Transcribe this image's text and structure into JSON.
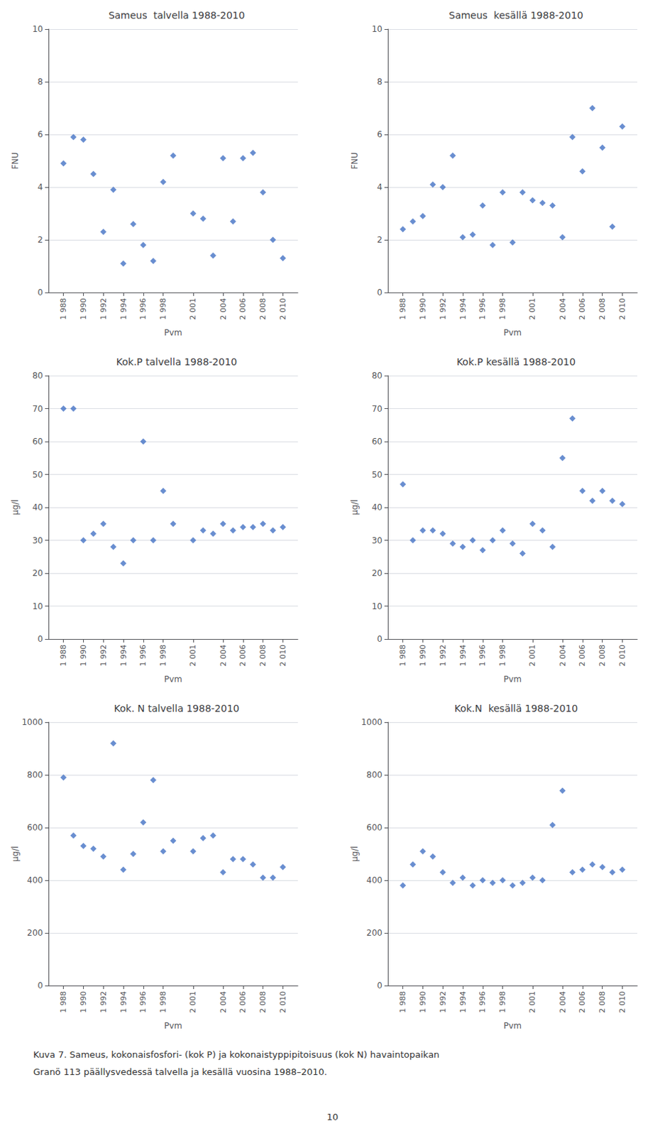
{
  "chart_data": [
    {
      "type": "scatter",
      "title": "Sameus  talvella 1988-2010",
      "xlabel": "Pvm",
      "ylabel": "FNU",
      "x": [
        1988,
        1989,
        1990,
        1991,
        1992,
        1993,
        1994,
        1995,
        1996,
        1997,
        1998,
        1999,
        2001,
        2002,
        2003,
        2004,
        2005,
        2006,
        2007,
        2008,
        2009,
        2010
      ],
      "values": [
        4.9,
        5.9,
        5.8,
        4.5,
        2.3,
        3.9,
        1.1,
        2.6,
        1.8,
        1.2,
        4.2,
        5.2,
        3.0,
        2.8,
        1.4,
        5.1,
        2.7,
        5.1,
        5.3,
        3.8,
        2.0,
        1.3
      ],
      "color": "#4472C4",
      "marker": "diamond",
      "xlim": [
        1986.5,
        2011.5
      ],
      "xticks": [
        {
          "value": 1988,
          "label": "1 988"
        },
        {
          "value": 1990,
          "label": "1 990"
        },
        {
          "value": 1992,
          "label": "1 992"
        },
        {
          "value": 1994,
          "label": "1 994"
        },
        {
          "value": 1996,
          "label": "1 996"
        },
        {
          "value": 1998,
          "label": "1 998"
        },
        {
          "value": 2001,
          "label": "2 001"
        },
        {
          "value": 2004,
          "label": "2 004"
        },
        {
          "value": 2006,
          "label": "2 006"
        },
        {
          "value": 2008,
          "label": "2 008"
        },
        {
          "value": 2010,
          "label": "2 010"
        }
      ],
      "ylim": [
        0,
        10
      ],
      "yticks": [
        0,
        2,
        4,
        6,
        8,
        10
      ],
      "grid": "y"
    },
    {
      "type": "scatter",
      "title": "Sameus  kesällä 1988-2010",
      "xlabel": "Pvm",
      "ylabel": "FNU",
      "x": [
        1988,
        1989,
        1990,
        1991,
        1992,
        1993,
        1994,
        1995,
        1996,
        1997,
        1998,
        1999,
        2000,
        2001,
        2002,
        2003,
        2004,
        2005,
        2006,
        2007,
        2008,
        2009,
        2010
      ],
      "values": [
        2.4,
        2.7,
        2.9,
        4.1,
        4.0,
        5.2,
        2.1,
        2.2,
        3.3,
        1.8,
        3.8,
        1.9,
        3.8,
        3.5,
        3.4,
        3.3,
        2.1,
        5.9,
        4.6,
        7.0,
        5.5,
        2.5,
        6.3
      ],
      "color": "#4472C4",
      "marker": "diamond",
      "xlim": [
        1986.5,
        2011.5
      ],
      "xticks": [
        {
          "value": 1988,
          "label": "1 988"
        },
        {
          "value": 1990,
          "label": "1 990"
        },
        {
          "value": 1992,
          "label": "1 992"
        },
        {
          "value": 1994,
          "label": "1 994"
        },
        {
          "value": 1996,
          "label": "1 996"
        },
        {
          "value": 1998,
          "label": "1 998"
        },
        {
          "value": 2001,
          "label": "2 001"
        },
        {
          "value": 2004,
          "label": "2 004"
        },
        {
          "value": 2006,
          "label": "2 006"
        },
        {
          "value": 2008,
          "label": "2 008"
        },
        {
          "value": 2010,
          "label": "2 010"
        }
      ],
      "ylim": [
        0,
        10
      ],
      "yticks": [
        0,
        2,
        4,
        6,
        8,
        10
      ],
      "grid": "y"
    },
    {
      "type": "scatter",
      "title": "Kok.P talvella 1988-2010",
      "xlabel": "Pvm",
      "ylabel": "µg/l",
      "x": [
        1988,
        1989,
        1990,
        1991,
        1992,
        1993,
        1994,
        1995,
        1996,
        1997,
        1998,
        1999,
        2001,
        2002,
        2003,
        2004,
        2005,
        2006,
        2007,
        2008,
        2009,
        2010
      ],
      "values": [
        70,
        70,
        30,
        32,
        35,
        28,
        23,
        30,
        60,
        30,
        45,
        35,
        30,
        33,
        32,
        35,
        33,
        34,
        34,
        35,
        33,
        34
      ],
      "color": "#4472C4",
      "marker": "diamond",
      "xlim": [
        1986.5,
        2011.5
      ],
      "xticks": [
        {
          "value": 1988,
          "label": "1 988"
        },
        {
          "value": 1990,
          "label": "1 990"
        },
        {
          "value": 1992,
          "label": "1 992"
        },
        {
          "value": 1994,
          "label": "1 994"
        },
        {
          "value": 1996,
          "label": "1 996"
        },
        {
          "value": 1998,
          "label": "1 998"
        },
        {
          "value": 2001,
          "label": "2 001"
        },
        {
          "value": 2004,
          "label": "2 004"
        },
        {
          "value": 2006,
          "label": "2 006"
        },
        {
          "value": 2008,
          "label": "2 008"
        },
        {
          "value": 2010,
          "label": "2 010"
        }
      ],
      "ylim": [
        0,
        80
      ],
      "yticks": [
        0,
        10,
        20,
        30,
        40,
        50,
        60,
        70,
        80
      ],
      "grid": "y"
    },
    {
      "type": "scatter",
      "title": "Kok.P kesällä 1988-2010",
      "xlabel": "Pvm",
      "ylabel": "µg/l",
      "x": [
        1988,
        1989,
        1990,
        1991,
        1992,
        1993,
        1994,
        1995,
        1996,
        1997,
        1998,
        1999,
        2000,
        2001,
        2002,
        2003,
        2004,
        2005,
        2006,
        2007,
        2008,
        2009,
        2010
      ],
      "values": [
        47,
        30,
        33,
        33,
        32,
        29,
        28,
        30,
        27,
        30,
        33,
        29,
        26,
        35,
        33,
        28,
        55,
        67,
        45,
        42,
        45,
        42,
        41
      ],
      "color": "#4472C4",
      "marker": "diamond",
      "xlim": [
        1986.5,
        2011.5
      ],
      "xticks": [
        {
          "value": 1988,
          "label": "1 988"
        },
        {
          "value": 1990,
          "label": "1 990"
        },
        {
          "value": 1992,
          "label": "1 992"
        },
        {
          "value": 1994,
          "label": "1 994"
        },
        {
          "value": 1996,
          "label": "1 996"
        },
        {
          "value": 1998,
          "label": "1 998"
        },
        {
          "value": 2001,
          "label": "2 001"
        },
        {
          "value": 2004,
          "label": "2 004"
        },
        {
          "value": 2006,
          "label": "2 006"
        },
        {
          "value": 2008,
          "label": "2 008"
        },
        {
          "value": 2010,
          "label": "2 010"
        }
      ],
      "ylim": [
        0,
        80
      ],
      "yticks": [
        0,
        10,
        20,
        30,
        40,
        50,
        60,
        70,
        80
      ],
      "grid": "y"
    },
    {
      "type": "scatter",
      "title": "Kok. N talvella 1988-2010",
      "xlabel": "Pvm",
      "ylabel": "µg/l",
      "x": [
        1988,
        1989,
        1990,
        1991,
        1992,
        1993,
        1994,
        1995,
        1996,
        1997,
        1998,
        1999,
        2001,
        2002,
        2003,
        2004,
        2005,
        2006,
        2007,
        2008,
        2009,
        2010
      ],
      "values": [
        790,
        570,
        530,
        520,
        490,
        920,
        440,
        500,
        620,
        780,
        510,
        550,
        510,
        560,
        570,
        430,
        480,
        480,
        460,
        410,
        410,
        450
      ],
      "color": "#4472C4",
      "marker": "diamond",
      "xlim": [
        1986.5,
        2011.5
      ],
      "xticks": [
        {
          "value": 1988,
          "label": "1 988"
        },
        {
          "value": 1990,
          "label": "1 990"
        },
        {
          "value": 1992,
          "label": "1 992"
        },
        {
          "value": 1994,
          "label": "1 994"
        },
        {
          "value": 1996,
          "label": "1 996"
        },
        {
          "value": 1998,
          "label": "1 998"
        },
        {
          "value": 2001,
          "label": "2 001"
        },
        {
          "value": 2004,
          "label": "2 004"
        },
        {
          "value": 2006,
          "label": "2 006"
        },
        {
          "value": 2008,
          "label": "2 008"
        },
        {
          "value": 2010,
          "label": "2 010"
        }
      ],
      "ylim": [
        0,
        1000
      ],
      "yticks": [
        0,
        200,
        400,
        600,
        800,
        1000
      ],
      "grid": "y"
    },
    {
      "type": "scatter",
      "title": "Kok.N  kesällä 1988-2010",
      "xlabel": "Pvm",
      "ylabel": "µg/l",
      "x": [
        1988,
        1989,
        1990,
        1991,
        1992,
        1993,
        1994,
        1995,
        1996,
        1997,
        1998,
        1999,
        2000,
        2001,
        2002,
        2003,
        2004,
        2005,
        2006,
        2007,
        2008,
        2009,
        2010
      ],
      "values": [
        380,
        460,
        510,
        490,
        430,
        390,
        410,
        380,
        400,
        390,
        400,
        380,
        390,
        410,
        400,
        610,
        740,
        430,
        440,
        460,
        450,
        430,
        440
      ],
      "color": "#4472C4",
      "marker": "diamond",
      "xlim": [
        1986.5,
        2011.5
      ],
      "xticks": [
        {
          "value": 1988,
          "label": "1 988"
        },
        {
          "value": 1990,
          "label": "1 990"
        },
        {
          "value": 1992,
          "label": "1 992"
        },
        {
          "value": 1994,
          "label": "1 994"
        },
        {
          "value": 1996,
          "label": "1 996"
        },
        {
          "value": 1998,
          "label": "1 998"
        },
        {
          "value": 2001,
          "label": "2 001"
        },
        {
          "value": 2004,
          "label": "2 004"
        },
        {
          "value": 2006,
          "label": "2 006"
        },
        {
          "value": 2008,
          "label": "2 008"
        },
        {
          "value": 2010,
          "label": "2 010"
        }
      ],
      "ylim": [
        0,
        1000
      ],
      "yticks": [
        0,
        200,
        400,
        600,
        800,
        1000
      ],
      "grid": "y"
    }
  ],
  "annotations": [
    "Kuva 7. Sameus, kokonaisfosfori- (kok P) ja kokonaistyppipitoisuus (kok N) havaintopaikan",
    "Granö 113 päällysvedessä talvella ja kesällä vuosina 1988–2010.",
    "10"
  ]
}
